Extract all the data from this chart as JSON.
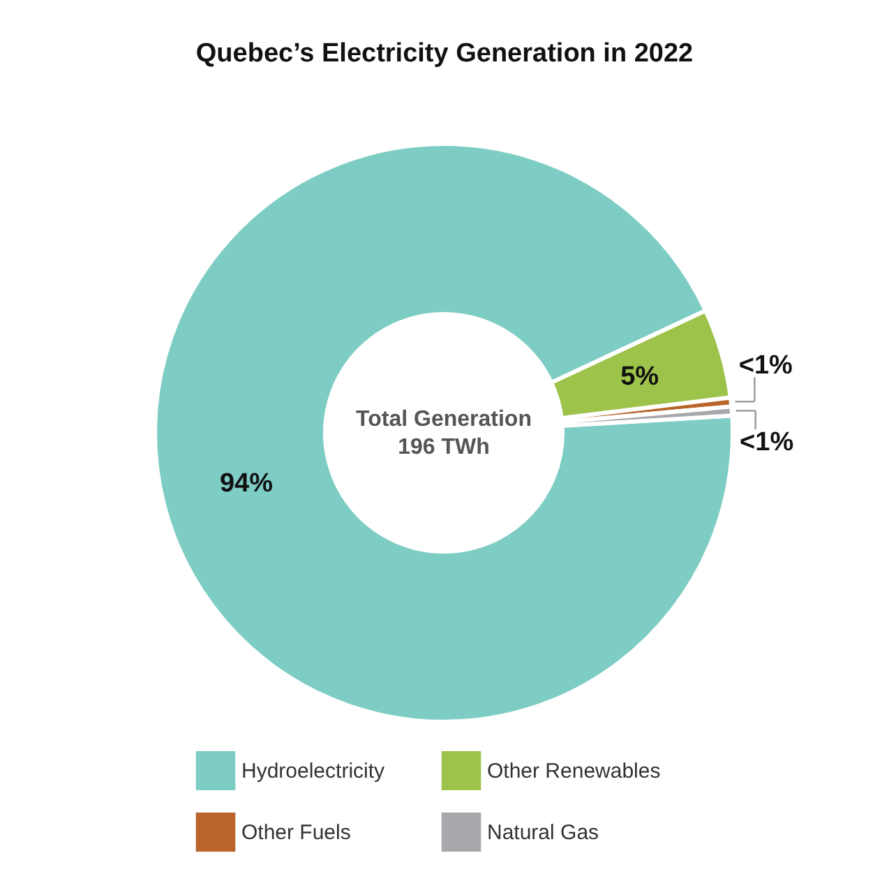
{
  "chart_data": {
    "type": "donut",
    "title": "Quebec’s Electricity Generation in 2022",
    "categories": [
      "Hydroelectricity",
      "Other Renewables",
      "Other Fuels",
      "Natural Gas"
    ],
    "values": [
      94,
      5,
      0.5,
      0.5
    ],
    "colors": [
      "#7ecdc4",
      "#9dc34a",
      "#b8642a",
      "#a7a8ac"
    ],
    "value_labels": [
      "94%",
      "5%",
      "<1%",
      "<1%"
    ],
    "annotations": [
      "Total Generation",
      "196 TWh"
    ],
    "legend": "bottom"
  }
}
